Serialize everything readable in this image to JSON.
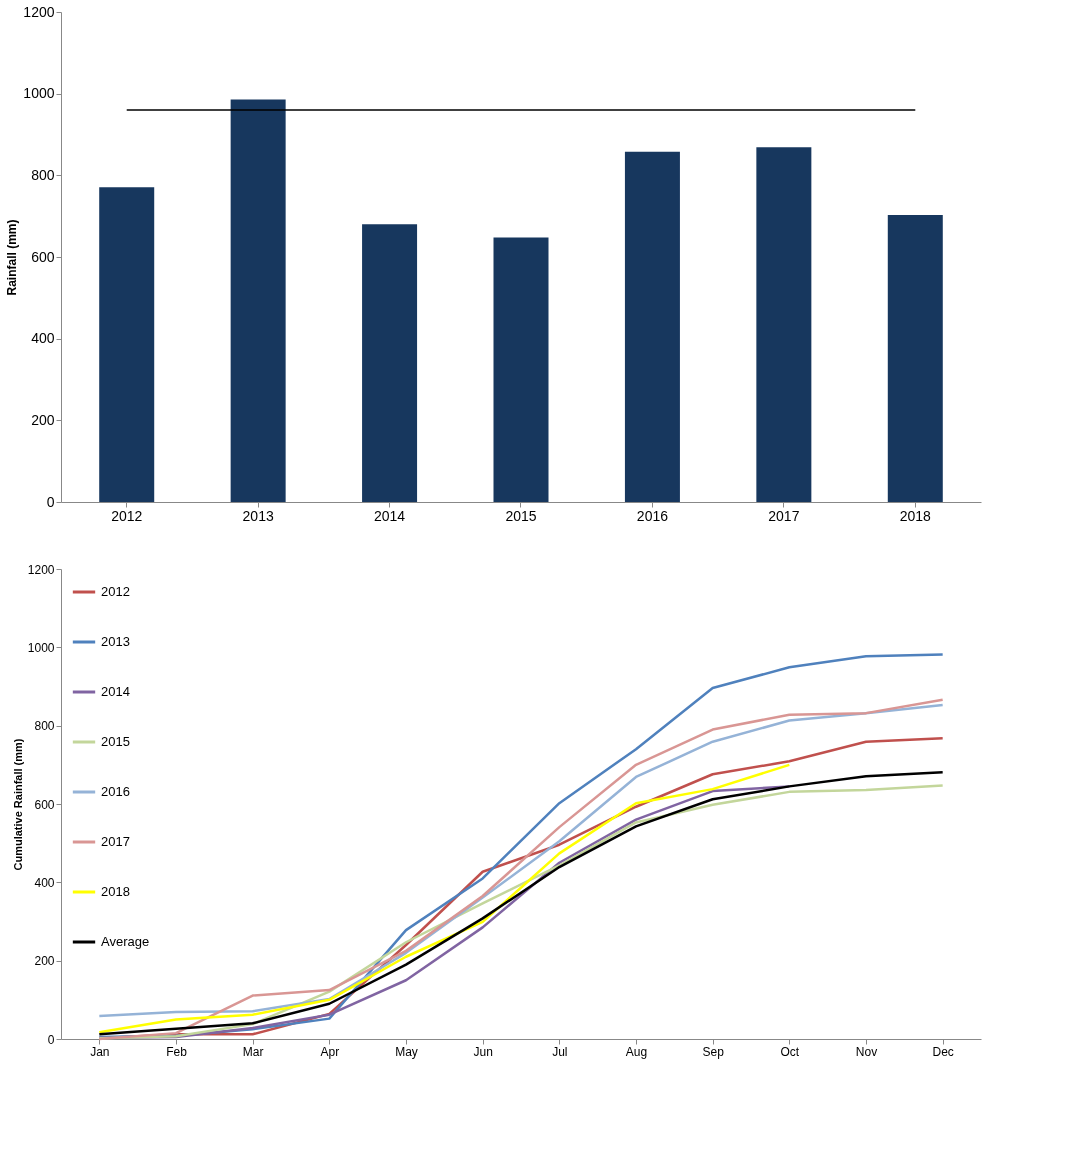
{
  "chart_data": [
    {
      "type": "bar",
      "ylabel": "Rainfall (mm)",
      "categories": [
        "2012",
        "2013",
        "2014",
        "2015",
        "2016",
        "2017",
        "2018"
      ],
      "values": [
        771,
        986,
        680,
        648,
        858,
        869,
        703
      ],
      "color": "#17375e",
      "ylim": [
        0,
        1200
      ],
      "yticks": [
        0,
        200,
        400,
        600,
        800,
        1000,
        1200
      ],
      "grid": false,
      "ref_lines": [
        {
          "axis": "y",
          "value": 960,
          "color": "#000000"
        }
      ]
    },
    {
      "type": "line",
      "ylabel": "Cumulative Rainfall (mm)",
      "categories": [
        "Jan",
        "Feb",
        "Mar",
        "Apr",
        "May",
        "Jun",
        "Jul",
        "Aug",
        "Sep",
        "Oct",
        "Nov",
        "Dec"
      ],
      "ylim": [
        0,
        1200
      ],
      "yticks": [
        0,
        200,
        400,
        600,
        800,
        1000,
        1200
      ],
      "grid": false,
      "legend": "top left",
      "marker": "none",
      "series": [
        {
          "name": "2012",
          "color": "#c0504d",
          "values": [
            2,
            12,
            12,
            64,
            240,
            427,
            496,
            593,
            676,
            709,
            759,
            768
          ]
        },
        {
          "name": "2013",
          "color": "#4f81bd",
          "values": [
            5,
            8,
            25,
            52,
            278,
            410,
            602,
            740,
            896,
            949,
            977,
            982
          ]
        },
        {
          "name": "2014",
          "color": "#8064a2",
          "values": [
            3,
            5,
            28,
            62,
            150,
            285,
            450,
            560,
            633,
            645,
            null,
            null
          ]
        },
        {
          "name": "2015",
          "color": "#c3d69b",
          "values": [
            2,
            7,
            38,
            121,
            247,
            346,
            443,
            553,
            598,
            631,
            636,
            647
          ]
        },
        {
          "name": "2016",
          "color": "#95b3d7",
          "values": [
            59,
            69,
            71,
            102,
            220,
            361,
            505,
            669,
            759,
            813,
            832,
            853
          ]
        },
        {
          "name": "2017",
          "color": "#d99694",
          "values": [
            0,
            15,
            111,
            125,
            225,
            365,
            541,
            700,
            790,
            828,
            832,
            866
          ]
        },
        {
          "name": "2018",
          "color": "#ffff00",
          "values": [
            17,
            50,
            62,
            100,
            210,
            299,
            474,
            602,
            638,
            700,
            null,
            null
          ]
        },
        {
          "name": "Average",
          "color": "#000000",
          "values": [
            12,
            26,
            40,
            90,
            190,
            308,
            439,
            543,
            612,
            645,
            671,
            681
          ]
        }
      ]
    }
  ]
}
